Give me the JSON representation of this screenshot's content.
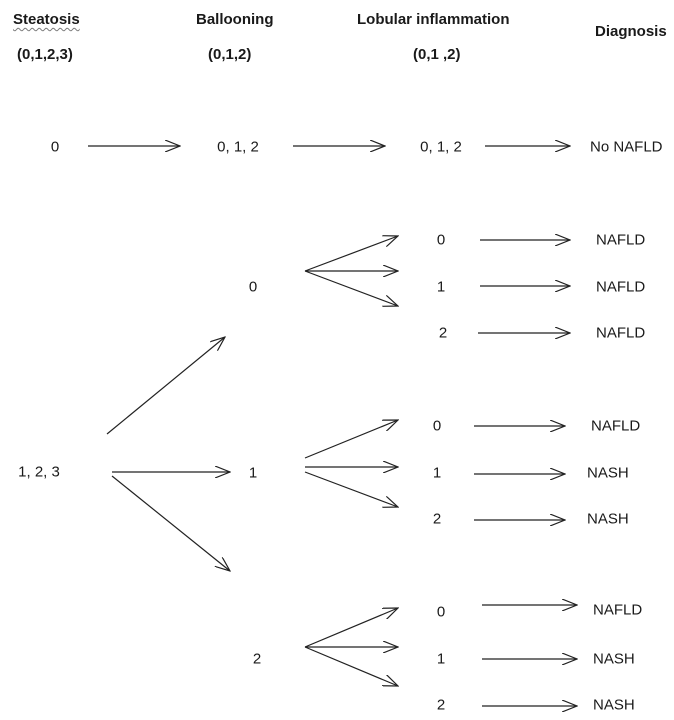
{
  "headers": {
    "steatosis": "Steatosis",
    "steatosis_range": "(0,1,2,3)",
    "ballooning": "Ballooning",
    "ballooning_range": "(0,1,2)",
    "lobular": "Lobular inflammation",
    "lobular_range": "(0,1 ,2)",
    "diagnosis": "Diagnosis"
  },
  "row0": {
    "steatosis": "0",
    "ballooning": "0, 1, 2",
    "lobular": "0, 1, 2",
    "diagnosis": "No NAFLD"
  },
  "steatosis_positive": "1, 2, 3",
  "ballooning_branches": [
    {
      "score": "0",
      "lobular": [
        "0",
        "1",
        "2"
      ],
      "diagnoses": [
        "NAFLD",
        "NAFLD",
        "NAFLD"
      ]
    },
    {
      "score": "1",
      "lobular": [
        "0",
        "1",
        "2"
      ],
      "diagnoses": [
        "NAFLD",
        "NASH",
        "NASH"
      ]
    },
    {
      "score": "2",
      "lobular": [
        "0",
        "1",
        "2"
      ],
      "diagnoses": [
        "NAFLD",
        "NASH",
        "NASH"
      ]
    }
  ]
}
